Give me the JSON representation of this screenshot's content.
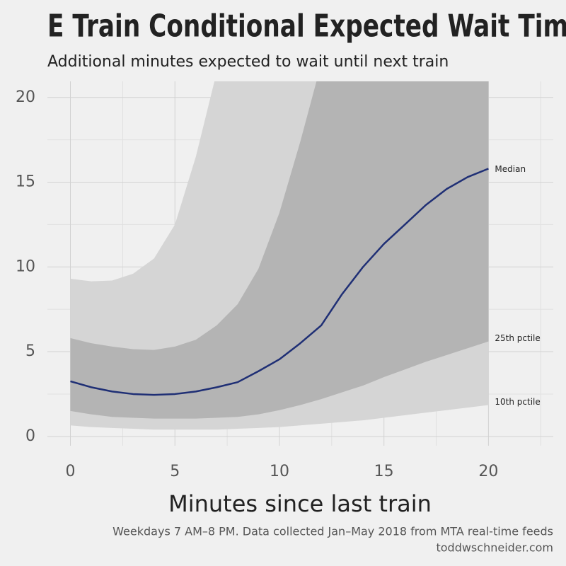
{
  "chart_data": {
    "type": "band-line",
    "title": "E Train Conditional Expected Wait Time",
    "subtitle": "Additional minutes expected to wait until next train",
    "x_label": "Minutes since last train",
    "caption": [
      "Weekdays 7 AM–8 PM. Data collected Jan–May 2018 from MTA real-time feeds",
      "toddwschneider.com"
    ],
    "x": [
      0,
      1,
      2,
      3,
      4,
      5,
      6,
      7,
      8,
      9,
      10,
      11,
      12,
      13,
      14,
      15,
      16,
      17,
      18,
      19,
      20
    ],
    "xlim": [
      -1.1,
      23.1
    ],
    "ylim": [
      -0.55,
      20.95
    ],
    "xticks": [
      0,
      5,
      10,
      15,
      20
    ],
    "yticks": [
      0,
      5,
      10,
      15,
      20
    ],
    "xminor": [
      2.5,
      7.5,
      12.5,
      17.5,
      22.5
    ],
    "yminor": [
      2.5,
      7.5,
      12.5,
      17.5
    ],
    "grid": true,
    "bands": [
      {
        "color": "#d5d5d5",
        "lower": {
          "name": "10th pctile",
          "values": [
            0.65,
            0.55,
            0.5,
            0.45,
            0.4,
            0.4,
            0.4,
            0.4,
            0.45,
            0.5,
            0.55,
            0.65,
            0.75,
            0.85,
            0.95,
            1.1,
            1.25,
            1.4,
            1.55,
            1.7,
            1.85
          ]
        },
        "upper": {
          "values": [
            9.3,
            9.15,
            9.2,
            9.6,
            10.5,
            12.5,
            16.5,
            21.5,
            24,
            26,
            28,
            30,
            32,
            34,
            36,
            38,
            40,
            42,
            44,
            46,
            48
          ]
        }
      },
      {
        "color": "#b4b4b4",
        "lower": {
          "name": "25th pctile",
          "values": [
            1.5,
            1.3,
            1.15,
            1.1,
            1.05,
            1.05,
            1.05,
            1.1,
            1.15,
            1.3,
            1.55,
            1.85,
            2.2,
            2.6,
            3.0,
            3.5,
            3.95,
            4.4,
            4.8,
            5.2,
            5.6
          ]
        },
        "upper": {
          "values": [
            5.8,
            5.5,
            5.3,
            5.15,
            5.1,
            5.3,
            5.7,
            6.55,
            7.8,
            9.9,
            13.2,
            17.4,
            22,
            25,
            27,
            29,
            31,
            33,
            35,
            37,
            39
          ]
        }
      }
    ],
    "line": {
      "name": "Median",
      "color": "#1f2f75",
      "values": [
        3.25,
        2.9,
        2.65,
        2.5,
        2.45,
        2.5,
        2.65,
        2.9,
        3.2,
        3.85,
        4.55,
        5.5,
        6.55,
        8.4,
        10,
        11.36,
        12.5,
        13.65,
        14.6,
        15.3,
        15.8
      ]
    }
  }
}
